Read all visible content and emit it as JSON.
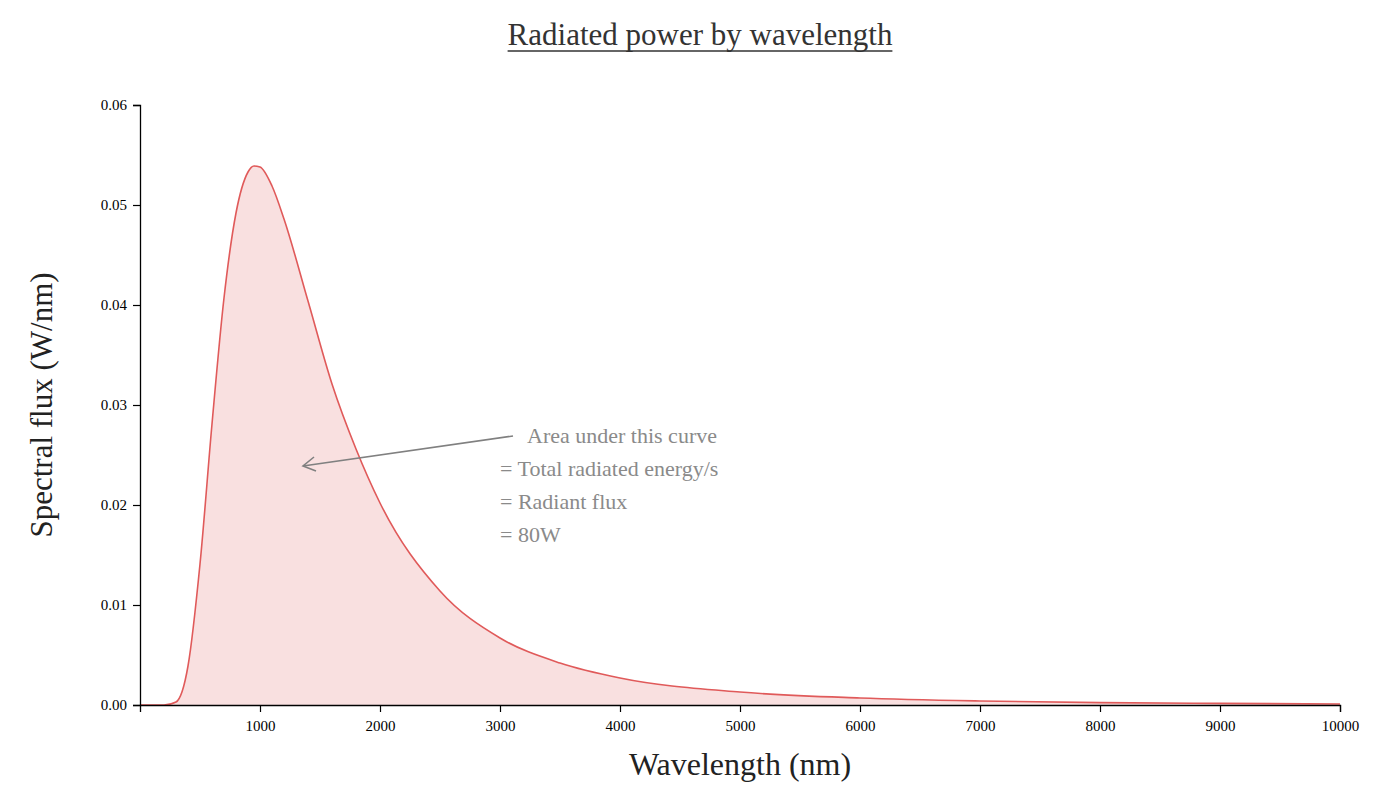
{
  "chart_data": {
    "type": "area",
    "title": "Radiated power by wavelength",
    "x_label": "Wavelength (nm)",
    "y_label": "Spectral flux (W/nm)",
    "annotation": [
      "Area under this curve",
      "= Total radiated energy/s",
      "= Radiant flux",
      "= 80W"
    ],
    "x": [
      0,
      200,
      300,
      400,
      500,
      600,
      700,
      800,
      900,
      950,
      1000,
      1100,
      1200,
      1400,
      1600,
      1800,
      2000,
      2500,
      3000,
      3500,
      4000,
      5000,
      6000,
      7000,
      8000,
      9000,
      10000
    ],
    "values": [
      0,
      0,
      0.0003,
      0.0039,
      0.0141,
      0.0281,
      0.0407,
      0.0492,
      0.0533,
      0.0539,
      0.0538,
      0.0519,
      0.0486,
      0.0404,
      0.0321,
      0.0256,
      0.0202,
      0.0114,
      0.0067,
      0.0042,
      0.0027,
      0.0013,
      0.0007,
      0.0004,
      0.00024,
      0.00016,
      0.0001
    ],
    "color": "#e05a5a",
    "xlim": [
      0,
      10000
    ],
    "xticks": [
      1000,
      2000,
      3000,
      4000,
      5000,
      6000,
      7000,
      8000,
      9000,
      10000
    ],
    "ylim": [
      0,
      0.06
    ],
    "yticks": [
      {
        "value": 0,
        "label": "0.00"
      },
      0.01,
      0.02,
      0.03,
      0.04,
      0.05,
      0.06
    ],
    "grid": false
  }
}
